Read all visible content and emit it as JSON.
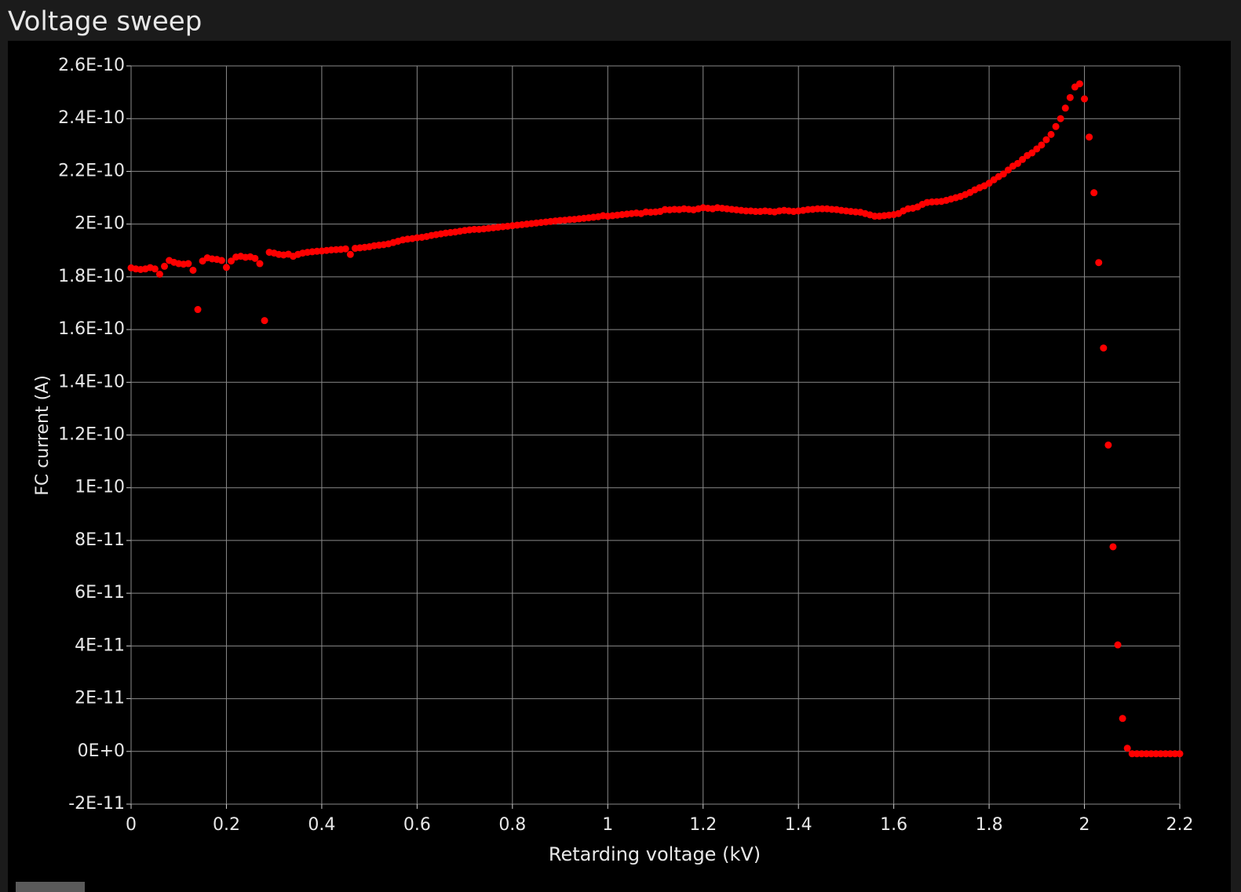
{
  "chart_data": {
    "type": "scatter",
    "title": "Voltage sweep",
    "x_label": "Retarding voltage (kV)",
    "y_label": "FC current (A)",
    "color": "#ff0000",
    "grid": true,
    "xlim": [
      0,
      2.2
    ],
    "xticks": [
      0,
      0.2,
      0.4,
      0.6,
      0.8,
      1,
      1.2,
      1.4,
      1.6,
      1.8,
      2,
      2.2
    ],
    "ylim": [
      -2e-11,
      2.6e-10
    ],
    "yticks": [
      {
        "value": -2e-11,
        "label": "-2E-11"
      },
      {
        "value": 0,
        "label": "0E+0"
      },
      {
        "value": 2e-11,
        "label": "2E-11"
      },
      {
        "value": 4e-11,
        "label": "4E-11"
      },
      {
        "value": 6e-11,
        "label": "6E-11"
      },
      {
        "value": 8e-11,
        "label": "8E-11"
      },
      {
        "value": 1e-10,
        "label": "1E-10"
      },
      {
        "value": 1.2e-10,
        "label": "1.2E-10"
      },
      {
        "value": 1.4e-10,
        "label": "1.4E-10"
      },
      {
        "value": 1.6e-10,
        "label": "1.6E-10"
      },
      {
        "value": 1.8e-10,
        "label": "1.8E-10"
      },
      {
        "value": 2e-10,
        "label": "2E-10"
      },
      {
        "value": 2.2e-10,
        "label": "2.2E-10"
      },
      {
        "value": 2.4e-10,
        "label": "2.4E-10"
      },
      {
        "value": 2.6e-10,
        "label": "2.6E-10"
      }
    ],
    "x": [
      0,
      0.01,
      0.02,
      0.03,
      0.04,
      0.05,
      0.06,
      0.07,
      0.08,
      0.09,
      0.1,
      0.11,
      0.12,
      0.13,
      0.14,
      0.15,
      0.16,
      0.17,
      0.18,
      0.19,
      0.2,
      0.21,
      0.22,
      0.23,
      0.24,
      0.25,
      0.26,
      0.27,
      0.28,
      0.29,
      0.3,
      0.31,
      0.32,
      0.33,
      0.34,
      0.35,
      0.36,
      0.37,
      0.38,
      0.39,
      0.4,
      0.41,
      0.42,
      0.43,
      0.44,
      0.45,
      0.46,
      0.47,
      0.48,
      0.49,
      0.5,
      0.51,
      0.52,
      0.53,
      0.54,
      0.55,
      0.56,
      0.57,
      0.58,
      0.59,
      0.6,
      0.61,
      0.62,
      0.63,
      0.64,
      0.65,
      0.66,
      0.67,
      0.68,
      0.69,
      0.7,
      0.71,
      0.72,
      0.73,
      0.74,
      0.75,
      0.76,
      0.77,
      0.78,
      0.79,
      0.8,
      0.81,
      0.82,
      0.83,
      0.84,
      0.85,
      0.86,
      0.87,
      0.88,
      0.89,
      0.9,
      0.91,
      0.92,
      0.93,
      0.94,
      0.95,
      0.96,
      0.97,
      0.98,
      0.99,
      1,
      1.01,
      1.02,
      1.03,
      1.04,
      1.05,
      1.06,
      1.07,
      1.08,
      1.09,
      1.1,
      1.11,
      1.12,
      1.13,
      1.14,
      1.15,
      1.16,
      1.17,
      1.18,
      1.19,
      1.2,
      1.21,
      1.22,
      1.23,
      1.24,
      1.25,
      1.26,
      1.27,
      1.28,
      1.29,
      1.3,
      1.31,
      1.32,
      1.33,
      1.34,
      1.35,
      1.36,
      1.37,
      1.38,
      1.39,
      1.4,
      1.41,
      1.42,
      1.43,
      1.44,
      1.45,
      1.46,
      1.47,
      1.48,
      1.49,
      1.5,
      1.51,
      1.52,
      1.53,
      1.54,
      1.55,
      1.56,
      1.57,
      1.58,
      1.59,
      1.6,
      1.61,
      1.62,
      1.63,
      1.64,
      1.65,
      1.66,
      1.67,
      1.68,
      1.69,
      1.7,
      1.71,
      1.72,
      1.73,
      1.74,
      1.75,
      1.76,
      1.77,
      1.78,
      1.79,
      1.8,
      1.81,
      1.82,
      1.83,
      1.84,
      1.85,
      1.86,
      1.87,
      1.88,
      1.89,
      1.9,
      1.91,
      1.92,
      1.93,
      1.94,
      1.95,
      1.96,
      1.97,
      1.98,
      1.99,
      2,
      2.01,
      2.02,
      2.03,
      2.04,
      2.05,
      2.06,
      2.07,
      2.08,
      2.09,
      2.1,
      2.11,
      2.12,
      2.13,
      2.14,
      2.15,
      2.16,
      2.17,
      2.18,
      2.19,
      2.2
    ],
    "values": [
      1.834e-10,
      1.83e-10,
      1.828e-10,
      1.83e-10,
      1.835e-10,
      1.83e-10,
      1.81e-10,
      1.84e-10,
      1.862e-10,
      1.855e-10,
      1.85e-10,
      1.848e-10,
      1.85e-10,
      1.825e-10,
      1.676e-10,
      1.86e-10,
      1.872e-10,
      1.868e-10,
      1.866e-10,
      1.862e-10,
      1.836e-10,
      1.86e-10,
      1.875e-10,
      1.878e-10,
      1.874e-10,
      1.876e-10,
      1.87e-10,
      1.85e-10,
      1.634e-10,
      1.893e-10,
      1.89e-10,
      1.885e-10,
      1.883e-10,
      1.886e-10,
      1.878e-10,
      1.885e-10,
      1.89e-10,
      1.893e-10,
      1.895e-10,
      1.897e-10,
      1.898e-10,
      1.9e-10,
      1.902e-10,
      1.903e-10,
      1.904e-10,
      1.906e-10,
      1.885e-10,
      1.908e-10,
      1.91e-10,
      1.912e-10,
      1.914e-10,
      1.918e-10,
      1.92e-10,
      1.922e-10,
      1.925e-10,
      1.93e-10,
      1.935e-10,
      1.94e-10,
      1.943e-10,
      1.945e-10,
      1.948e-10,
      1.95e-10,
      1.953e-10,
      1.957e-10,
      1.96e-10,
      1.963e-10,
      1.966e-10,
      1.968e-10,
      1.97e-10,
      1.973e-10,
      1.976e-10,
      1.978e-10,
      1.98e-10,
      1.98e-10,
      1.982e-10,
      1.984e-10,
      1.986e-10,
      1.988e-10,
      1.99e-10,
      1.992e-10,
      1.994e-10,
      1.996e-10,
      1.998e-10,
      2e-10,
      2.002e-10,
      2.004e-10,
      2.006e-10,
      2.008e-10,
      2.01e-10,
      2.012e-10,
      2.014e-10,
      2.015e-10,
      2.017e-10,
      2.018e-10,
      2.02e-10,
      2.022e-10,
      2.024e-10,
      2.026e-10,
      2.028e-10,
      2.032e-10,
      2.03e-10,
      2.032e-10,
      2.034e-10,
      2.036e-10,
      2.038e-10,
      2.04e-10,
      2.042e-10,
      2.04e-10,
      2.046e-10,
      2.045e-10,
      2.046e-10,
      2.048e-10,
      2.055e-10,
      2.054e-10,
      2.056e-10,
      2.055e-10,
      2.058e-10,
      2.056e-10,
      2.054e-10,
      2.058e-10,
      2.062e-10,
      2.06e-10,
      2.058e-10,
      2.062e-10,
      2.06e-10,
      2.058e-10,
      2.056e-10,
      2.054e-10,
      2.052e-10,
      2.05e-10,
      2.05e-10,
      2.048e-10,
      2.048e-10,
      2.05e-10,
      2.048e-10,
      2.046e-10,
      2.05e-10,
      2.052e-10,
      2.05e-10,
      2.048e-10,
      2.05e-10,
      2.052e-10,
      2.055e-10,
      2.056e-10,
      2.058e-10,
      2.058e-10,
      2.058e-10,
      2.056e-10,
      2.055e-10,
      2.052e-10,
      2.05e-10,
      2.048e-10,
      2.046e-10,
      2.045e-10,
      2.04e-10,
      2.035e-10,
      2.03e-10,
      2.03e-10,
      2.032e-10,
      2.034e-10,
      2.036e-10,
      2.04e-10,
      2.05e-10,
      2.058e-10,
      2.06e-10,
      2.065e-10,
      2.075e-10,
      2.082e-10,
      2.084e-10,
      2.085e-10,
      2.086e-10,
      2.09e-10,
      2.095e-10,
      2.1e-10,
      2.105e-10,
      2.112e-10,
      2.12e-10,
      2.13e-10,
      2.138e-10,
      2.145e-10,
      2.155e-10,
      2.168e-10,
      2.18e-10,
      2.19e-10,
      2.205e-10,
      2.22e-10,
      2.23e-10,
      2.245e-10,
      2.26e-10,
      2.27e-10,
      2.285e-10,
      2.3e-10,
      2.32e-10,
      2.34e-10,
      2.37e-10,
      2.4e-10,
      2.44e-10,
      2.48e-10,
      2.52e-10,
      2.532e-10,
      2.475e-10,
      2.33e-10,
      2.119e-10,
      1.854e-10,
      1.53e-10,
      1.162e-10,
      7.76e-11,
      4.04e-11,
      1.25e-11,
      1.2e-12,
      -9e-13,
      -9e-13,
      -9e-13,
      -9e-13,
      -9e-13,
      -9e-13,
      -9e-13,
      -9e-13,
      -9e-13,
      -9e-13,
      -9e-13
    ]
  }
}
